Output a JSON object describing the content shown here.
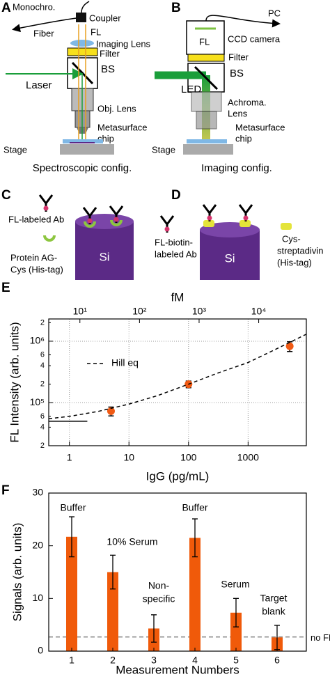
{
  "figure": {
    "panel_a": {
      "label": "A",
      "monochro": "Monochro.",
      "fiber": "Fiber",
      "coupler": "Coupler",
      "fl": "FL",
      "imaging_lens": "Imaging Lens",
      "filter": "Filter",
      "bs": "BS",
      "laser": "Laser",
      "obj_lens": "Obj. Lens",
      "chip": [
        "Metasurface",
        "chip"
      ],
      "stage": "Stage",
      "caption": "Spectroscopic config."
    },
    "panel_b": {
      "label": "B",
      "pc": "PC",
      "camera": "CCD camera",
      "fl": "FL",
      "filter": "Filter",
      "bs": "BS",
      "led": "LED",
      "lens": [
        "Achroma.",
        "Lens"
      ],
      "chip": [
        "Metasurface",
        "chip"
      ],
      "stage": "Stage",
      "caption": "Imaging config."
    },
    "panel_c": {
      "label": "C",
      "antibody": "FL-labeled Ab",
      "protein": [
        "Protein AG-",
        "Cys (His-tag)"
      ],
      "substrate": "Si"
    },
    "panel_d": {
      "label": "D",
      "antibody": [
        "FL-biotin-",
        "labeled Ab"
      ],
      "substrate": "Si",
      "protein": [
        "Cys-",
        "streptadivin",
        "(His-tag)"
      ]
    },
    "panel_e": {
      "label": "E"
    },
    "panel_f": {
      "label": "F"
    }
  },
  "chart_data": [
    {
      "type": "scatter",
      "xlabel": "IgG (pg/mL)",
      "x2label": "fM",
      "ylabel": "FL Intensity (arb. units)",
      "xscale": "log",
      "yscale": "log",
      "grid": true,
      "xlim": [
        0.45,
        9500
      ],
      "xticks": [
        1,
        10,
        100,
        1000
      ],
      "x2lim": [
        3,
        63000
      ],
      "x2ticks": [
        {
          "value": 10,
          "label": "10¹"
        },
        {
          "value": 100,
          "label": "10²"
        },
        {
          "value": 1000,
          "label": "10³"
        },
        {
          "value": 10000,
          "label": "10⁴"
        }
      ],
      "ylim": [
        20000,
        2300000
      ],
      "yticks": [
        {
          "value": 100000,
          "label": "10⁵"
        },
        {
          "value": 1000000,
          "label": "10⁶"
        }
      ],
      "yminorticks": [
        {
          "value": 20000,
          "label": "2"
        },
        {
          "value": 40000,
          "label": "4"
        },
        {
          "value": 60000,
          "label": "6"
        },
        {
          "value": 200000,
          "label": "2"
        },
        {
          "value": 400000,
          "label": "4"
        },
        {
          "value": 600000,
          "label": "6"
        },
        {
          "value": 2000000,
          "label": "2"
        }
      ],
      "series": [
        {
          "mode": "markers",
          "color": "#f05a14",
          "x": [
            5,
            100,
            5000
          ],
          "values": [
            73000,
            200000,
            830000
          ],
          "errors": [
            12000,
            25000,
            150000
          ]
        },
        {
          "name": "Hill eq",
          "mode": "line",
          "dashed": true,
          "color": "#000000",
          "x": [
            0.45,
            1,
            3,
            10,
            30,
            100,
            300,
            1000,
            3000,
            9500
          ],
          "values": [
            55000,
            60000,
            72000,
            95000,
            130000,
            200000,
            300000,
            450000,
            750000,
            1300000
          ]
        },
        {
          "mode": "line",
          "dashed": false,
          "color": "#000000",
          "x": [
            0.45,
            2
          ],
          "values": [
            50000,
            50000
          ]
        }
      ]
    },
    {
      "type": "bar",
      "xlabel": "Measurement Numbers",
      "ylabel": "Signals (arb. units)",
      "categories": [
        "1",
        "2",
        "3",
        "4",
        "5",
        "6"
      ],
      "values": [
        21.7,
        15,
        4.3,
        21.5,
        7.3,
        2.6
      ],
      "errors": [
        3.8,
        3.2,
        2.6,
        3.6,
        2.7,
        2.3
      ],
      "color": "#f05a0a",
      "ylim": [
        0,
        30
      ],
      "yticks": [
        0,
        10,
        20,
        30
      ],
      "reference_line": {
        "value": 2.7,
        "label": "no FL",
        "color": "#808080"
      },
      "annotations": [
        [
          "Buffer"
        ],
        [
          "10% Serum"
        ],
        [
          "Non-",
          "specific"
        ],
        [
          "Buffer"
        ],
        [
          "Serum"
        ],
        [
          "Target",
          "blank"
        ]
      ]
    }
  ]
}
